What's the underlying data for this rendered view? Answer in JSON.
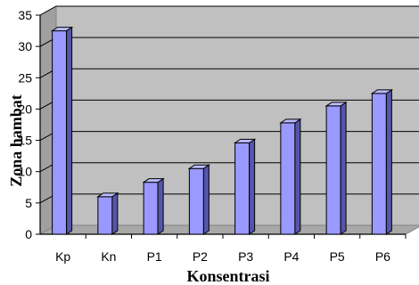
{
  "chart_data": {
    "type": "bar",
    "xlabel": "Konsentrasi",
    "ylabel": "Zona hambat",
    "categories": [
      "Kp",
      "Kn",
      "P1",
      "P2",
      "P3",
      "P4",
      "P5",
      "P6"
    ],
    "values": [
      32.5,
      6,
      8.3,
      10.5,
      14.6,
      17.8,
      20.5,
      22.5
    ],
    "ylim": [
      0,
      35
    ],
    "yticks": [
      0,
      5,
      10,
      15,
      20,
      25,
      30,
      35
    ],
    "ytick_labels": [
      "0",
      "5",
      "10",
      "15",
      "20",
      "25",
      "30",
      "35"
    ],
    "grid": true,
    "legend": false,
    "style": "3d",
    "colors": {
      "bar_front": "#9999ff",
      "bar_side": "#5555aa",
      "bar_top": "#bbbbff",
      "wall": "#c0c0c0",
      "floor": "#a8a8a8"
    }
  }
}
